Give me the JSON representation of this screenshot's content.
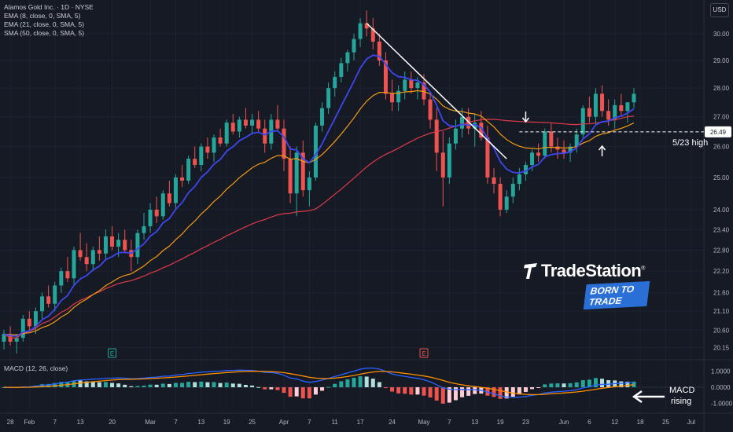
{
  "legend": {
    "title": "Alamos Gold Inc. · 1D · NYSE",
    "ema8": "EMA (8, close, 0, SMA, 5)",
    "ema21": "EMA (21, close, 0, SMA, 5)",
    "sma50": "SMA (50, close, 0, SMA, 5)",
    "macd": "MACD (12, 26, close)",
    "currency": "USD"
  },
  "logo": {
    "name": "TradeStation",
    "reg": "®",
    "tagline": "BORN TO TRADE"
  },
  "annotations": {
    "high_label": "5/23 high",
    "macd_label_1": "MACD",
    "macd_label_2": "rising",
    "price_tag": "26.49",
    "earnings_marker": "E"
  },
  "colors": {
    "up": "#26a69a",
    "down": "#ef5350",
    "ema8": "#3d47f0",
    "ema21": "#f39c12",
    "sma50": "#e0394a",
    "trendline": "#ffffff",
    "macd_line": "#2962ff",
    "signal_line": "#ff8f00"
  },
  "chart_data": {
    "type": "candlestick",
    "x_ticks": [
      {
        "label": "28",
        "index": 1
      },
      {
        "label": "Feb",
        "index": 4
      },
      {
        "label": "7",
        "index": 8
      },
      {
        "label": "13",
        "index": 12
      },
      {
        "label": "20",
        "index": 17
      },
      {
        "label": "Mar",
        "index": 23
      },
      {
        "label": "7",
        "index": 27
      },
      {
        "label": "13",
        "index": 31
      },
      {
        "label": "19",
        "index": 35
      },
      {
        "label": "25",
        "index": 39
      },
      {
        "label": "Apr",
        "index": 44
      },
      {
        "label": "7",
        "index": 48
      },
      {
        "label": "11",
        "index": 52
      },
      {
        "label": "17",
        "index": 56
      },
      {
        "label": "24",
        "index": 61
      },
      {
        "label": "May",
        "index": 66
      },
      {
        "label": "7",
        "index": 70
      },
      {
        "label": "13",
        "index": 74
      },
      {
        "label": "19",
        "index": 78
      },
      {
        "label": "23",
        "index": 82
      },
      {
        "label": "Jun",
        "index": 88
      },
      {
        "label": "6",
        "index": 92
      },
      {
        "label": "12",
        "index": 96
      },
      {
        "label": "18",
        "index": 100
      },
      {
        "label": "25",
        "index": 104
      },
      {
        "label": "Jul",
        "index": 108
      }
    ],
    "y_ticks": [
      30.0,
      29.0,
      28.0,
      27.0,
      26.0,
      25.0,
      24.0,
      23.4,
      22.8,
      22.2,
      21.6,
      21.1,
      20.6,
      20.15
    ],
    "y_scale": "log",
    "y_range": [
      19.9,
      31.0
    ],
    "macd_ticks": [
      1.0,
      0.0,
      -1.0
    ],
    "macd_range": [
      -1.4,
      1.5
    ],
    "x_count": 110,
    "candles": [
      [
        20.3,
        20.6,
        20.1,
        20.5
      ],
      [
        20.5,
        20.7,
        20.2,
        20.3
      ],
      [
        20.3,
        20.5,
        20.0,
        20.4
      ],
      [
        20.4,
        21.0,
        20.3,
        20.9
      ],
      [
        20.9,
        21.1,
        20.6,
        20.7
      ],
      [
        20.7,
        21.2,
        20.5,
        21.1
      ],
      [
        21.1,
        21.6,
        20.9,
        21.5
      ],
      [
        21.5,
        21.8,
        21.2,
        21.3
      ],
      [
        21.3,
        21.9,
        21.1,
        21.8
      ],
      [
        21.8,
        22.3,
        21.6,
        22.2
      ],
      [
        22.2,
        22.6,
        21.9,
        22.0
      ],
      [
        22.0,
        22.9,
        21.8,
        22.8
      ],
      [
        22.8,
        23.3,
        22.5,
        22.6
      ],
      [
        22.6,
        23.0,
        22.2,
        22.4
      ],
      [
        22.4,
        22.9,
        22.2,
        22.8
      ],
      [
        22.8,
        23.2,
        22.5,
        22.7
      ],
      [
        22.7,
        23.4,
        22.5,
        23.2
      ],
      [
        23.2,
        23.5,
        22.8,
        22.9
      ],
      [
        22.9,
        23.3,
        22.6,
        23.1
      ],
      [
        23.1,
        23.4,
        22.7,
        22.8
      ],
      [
        22.8,
        23.1,
        22.2,
        22.6
      ],
      [
        22.6,
        23.4,
        22.4,
        23.3
      ],
      [
        23.3,
        23.9,
        23.1,
        23.5
      ],
      [
        23.5,
        24.2,
        23.3,
        24.0
      ],
      [
        24.0,
        24.4,
        23.6,
        23.8
      ],
      [
        23.8,
        24.6,
        23.7,
        24.5
      ],
      [
        24.5,
        24.9,
        24.1,
        24.2
      ],
      [
        24.2,
        25.1,
        24.0,
        25.0
      ],
      [
        25.0,
        25.4,
        24.7,
        24.9
      ],
      [
        24.9,
        25.7,
        24.8,
        25.6
      ],
      [
        25.6,
        26.0,
        25.3,
        25.4
      ],
      [
        25.4,
        26.1,
        25.2,
        26.0
      ],
      [
        26.0,
        26.3,
        25.6,
        25.8
      ],
      [
        25.8,
        26.4,
        25.5,
        26.3
      ],
      [
        26.3,
        26.6,
        26.0,
        26.1
      ],
      [
        26.1,
        26.9,
        26.0,
        26.8
      ],
      [
        26.8,
        27.1,
        26.4,
        26.5
      ],
      [
        26.5,
        27.0,
        26.3,
        26.9
      ],
      [
        26.9,
        27.3,
        26.6,
        26.7
      ],
      [
        26.7,
        27.1,
        26.4,
        26.9
      ],
      [
        26.9,
        27.2,
        26.5,
        26.6
      ],
      [
        26.6,
        26.9,
        25.8,
        26.1
      ],
      [
        26.1,
        27.1,
        25.9,
        26.9
      ],
      [
        26.9,
        27.4,
        26.5,
        26.6
      ],
      [
        26.6,
        26.9,
        25.2,
        25.6
      ],
      [
        25.6,
        26.0,
        24.2,
        24.5
      ],
      [
        24.5,
        26.0,
        23.8,
        25.8
      ],
      [
        25.8,
        26.2,
        24.4,
        24.6
      ],
      [
        24.6,
        25.2,
        24.1,
        25.0
      ],
      [
        25.0,
        26.8,
        24.9,
        26.7
      ],
      [
        26.7,
        27.5,
        26.5,
        27.3
      ],
      [
        27.3,
        28.2,
        27.1,
        28.0
      ],
      [
        28.0,
        28.6,
        27.7,
        28.4
      ],
      [
        28.4,
        29.1,
        28.2,
        28.9
      ],
      [
        28.9,
        29.4,
        28.6,
        29.3
      ],
      [
        29.3,
        30.0,
        29.0,
        29.8
      ],
      [
        29.8,
        30.6,
        29.5,
        30.4
      ],
      [
        30.4,
        30.9,
        29.9,
        30.2
      ],
      [
        30.2,
        30.6,
        29.4,
        29.7
      ],
      [
        29.7,
        30.0,
        28.8,
        29.0
      ],
      [
        29.0,
        29.3,
        27.6,
        27.8
      ],
      [
        27.8,
        28.3,
        27.2,
        27.5
      ],
      [
        27.5,
        28.1,
        27.2,
        27.9
      ],
      [
        27.9,
        28.6,
        27.6,
        28.3
      ],
      [
        28.3,
        28.6,
        27.8,
        28.0
      ],
      [
        28.0,
        28.4,
        27.6,
        28.2
      ],
      [
        28.2,
        28.5,
        27.4,
        27.6
      ],
      [
        27.6,
        27.8,
        26.6,
        26.9
      ],
      [
        26.9,
        27.3,
        25.2,
        25.8
      ],
      [
        25.8,
        26.5,
        24.1,
        25.0
      ],
      [
        25.0,
        26.3,
        24.8,
        26.1
      ],
      [
        26.1,
        26.9,
        25.9,
        26.6
      ],
      [
        26.6,
        27.3,
        26.3,
        27.0
      ],
      [
        27.0,
        27.3,
        26.4,
        26.6
      ],
      [
        26.6,
        27.1,
        26.0,
        26.8
      ],
      [
        26.8,
        27.2,
        26.2,
        26.3
      ],
      [
        26.3,
        26.7,
        24.8,
        25.0
      ],
      [
        25.0,
        25.3,
        24.5,
        24.8
      ],
      [
        24.8,
        25.0,
        23.8,
        24.0
      ],
      [
        24.0,
        24.6,
        23.9,
        24.4
      ],
      [
        24.4,
        25.0,
        24.2,
        24.8
      ],
      [
        24.8,
        25.3,
        24.6,
        25.1
      ],
      [
        25.1,
        25.5,
        24.9,
        25.4
      ],
      [
        25.4,
        25.9,
        25.2,
        25.8
      ],
      [
        25.8,
        26.1,
        25.5,
        25.7
      ],
      [
        25.7,
        26.6,
        25.6,
        26.5
      ],
      [
        26.5,
        26.8,
        25.8,
        26.0
      ],
      [
        26.0,
        26.3,
        25.6,
        25.9
      ],
      [
        25.9,
        26.2,
        25.6,
        25.8
      ],
      [
        25.8,
        26.1,
        25.5,
        26.0
      ],
      [
        26.0,
        26.6,
        25.8,
        26.4
      ],
      [
        26.4,
        27.4,
        26.3,
        27.3
      ],
      [
        27.3,
        27.7,
        26.8,
        27.0
      ],
      [
        27.0,
        28.0,
        26.7,
        27.8
      ],
      [
        27.8,
        28.1,
        27.0,
        27.2
      ],
      [
        27.2,
        27.6,
        26.7,
        26.9
      ],
      [
        26.9,
        27.6,
        26.6,
        27.4
      ],
      [
        27.4,
        27.8,
        27.0,
        27.2
      ],
      [
        27.2,
        27.5,
        26.8,
        27.5
      ],
      [
        27.5,
        28.0,
        27.3,
        27.8
      ]
    ],
    "trendline": {
      "from": {
        "index": 57,
        "value": 30.4
      },
      "to": {
        "index": 79,
        "value": 25.6
      }
    },
    "resistance": {
      "value": 26.49,
      "from_index": 81
    }
  }
}
